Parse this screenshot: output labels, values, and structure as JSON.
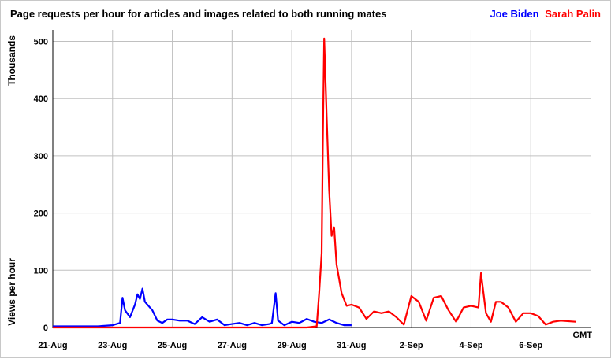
{
  "chart_data": {
    "type": "line",
    "title": "Page requests per hour for articles and images related to both running mates",
    "ylabel_top": "Thousands",
    "ylabel_bottom": "Views per hour",
    "x_unit_label": "GMT",
    "ylim": [
      0,
      520
    ],
    "y_ticks": [
      0,
      100,
      200,
      300,
      400,
      500
    ],
    "x_ticks": [
      "21-Aug",
      "23-Aug",
      "25-Aug",
      "27-Aug",
      "29-Aug",
      "31-Aug",
      "2-Sep",
      "4-Sep",
      "6-Sep"
    ],
    "x_range_days": [
      "2008-08-21",
      "2008-09-08"
    ],
    "grid": true,
    "legend_position": "top-right",
    "series": [
      {
        "name": "Joe Biden",
        "color": "#0000ff",
        "points": [
          [
            "2008-08-21 00:00",
            2
          ],
          [
            "2008-08-21 12:00",
            2
          ],
          [
            "2008-08-22 00:00",
            2
          ],
          [
            "2008-08-22 12:00",
            2
          ],
          [
            "2008-08-23 00:00",
            4
          ],
          [
            "2008-08-23 06:00",
            8
          ],
          [
            "2008-08-23 08:00",
            52
          ],
          [
            "2008-08-23 10:00",
            30
          ],
          [
            "2008-08-23 14:00",
            18
          ],
          [
            "2008-08-23 18:00",
            40
          ],
          [
            "2008-08-23 20:00",
            58
          ],
          [
            "2008-08-23 22:00",
            50
          ],
          [
            "2008-08-24 00:00",
            68
          ],
          [
            "2008-08-24 02:00",
            45
          ],
          [
            "2008-08-24 08:00",
            30
          ],
          [
            "2008-08-24 12:00",
            12
          ],
          [
            "2008-08-24 16:00",
            8
          ],
          [
            "2008-08-24 20:00",
            14
          ],
          [
            "2008-08-25 00:00",
            14
          ],
          [
            "2008-08-25 06:00",
            12
          ],
          [
            "2008-08-25 12:00",
            12
          ],
          [
            "2008-08-25 18:00",
            6
          ],
          [
            "2008-08-26 00:00",
            18
          ],
          [
            "2008-08-26 06:00",
            10
          ],
          [
            "2008-08-26 12:00",
            14
          ],
          [
            "2008-08-26 18:00",
            4
          ],
          [
            "2008-08-27 00:00",
            6
          ],
          [
            "2008-08-27 06:00",
            8
          ],
          [
            "2008-08-27 12:00",
            4
          ],
          [
            "2008-08-27 18:00",
            8
          ],
          [
            "2008-08-28 00:00",
            4
          ],
          [
            "2008-08-28 06:00",
            6
          ],
          [
            "2008-08-28 08:00",
            8
          ],
          [
            "2008-08-28 11:00",
            60
          ],
          [
            "2008-08-28 13:00",
            12
          ],
          [
            "2008-08-28 18:00",
            4
          ],
          [
            "2008-08-29 00:00",
            10
          ],
          [
            "2008-08-29 06:00",
            8
          ],
          [
            "2008-08-29 12:00",
            15
          ],
          [
            "2008-08-29 18:00",
            10
          ],
          [
            "2008-08-30 00:00",
            8
          ],
          [
            "2008-08-30 06:00",
            14
          ],
          [
            "2008-08-30 12:00",
            8
          ],
          [
            "2008-08-30 18:00",
            4
          ],
          [
            "2008-08-31 00:00",
            4
          ]
        ]
      },
      {
        "name": "Sarah Palin",
        "color": "#ff0000",
        "points": [
          [
            "2008-08-21 00:00",
            0
          ],
          [
            "2008-08-29 12:00",
            0
          ],
          [
            "2008-08-29 20:00",
            2
          ],
          [
            "2008-08-29 22:00",
            60
          ],
          [
            "2008-08-30 00:00",
            130
          ],
          [
            "2008-08-30 01:00",
            340
          ],
          [
            "2008-08-30 02:00",
            505
          ],
          [
            "2008-08-30 04:00",
            370
          ],
          [
            "2008-08-30 06:00",
            240
          ],
          [
            "2008-08-30 08:00",
            160
          ],
          [
            "2008-08-30 10:00",
            175
          ],
          [
            "2008-08-30 12:00",
            110
          ],
          [
            "2008-08-30 16:00",
            60
          ],
          [
            "2008-08-30 20:00",
            38
          ],
          [
            "2008-08-31 00:00",
            40
          ],
          [
            "2008-08-31 06:00",
            35
          ],
          [
            "2008-08-31 12:00",
            15
          ],
          [
            "2008-08-31 18:00",
            28
          ],
          [
            "2008-09-01 00:00",
            25
          ],
          [
            "2008-09-01 06:00",
            28
          ],
          [
            "2008-09-01 12:00",
            18
          ],
          [
            "2008-09-01 18:00",
            5
          ],
          [
            "2008-09-02 00:00",
            55
          ],
          [
            "2008-09-02 06:00",
            45
          ],
          [
            "2008-09-02 12:00",
            12
          ],
          [
            "2008-09-02 18:00",
            52
          ],
          [
            "2008-09-03 00:00",
            55
          ],
          [
            "2008-09-03 06:00",
            30
          ],
          [
            "2008-09-03 12:00",
            10
          ],
          [
            "2008-09-03 18:00",
            35
          ],
          [
            "2008-09-04 00:00",
            38
          ],
          [
            "2008-09-04 06:00",
            35
          ],
          [
            "2008-09-04 08:00",
            95
          ],
          [
            "2008-09-04 12:00",
            25
          ],
          [
            "2008-09-04 16:00",
            10
          ],
          [
            "2008-09-04 20:00",
            45
          ],
          [
            "2008-09-05 00:00",
            45
          ],
          [
            "2008-09-05 06:00",
            35
          ],
          [
            "2008-09-05 12:00",
            10
          ],
          [
            "2008-09-05 18:00",
            25
          ],
          [
            "2008-09-06 00:00",
            25
          ],
          [
            "2008-09-06 06:00",
            20
          ],
          [
            "2008-09-06 12:00",
            5
          ],
          [
            "2008-09-06 18:00",
            10
          ],
          [
            "2008-09-07 00:00",
            12
          ],
          [
            "2008-09-07 12:00",
            10
          ]
        ]
      }
    ]
  }
}
